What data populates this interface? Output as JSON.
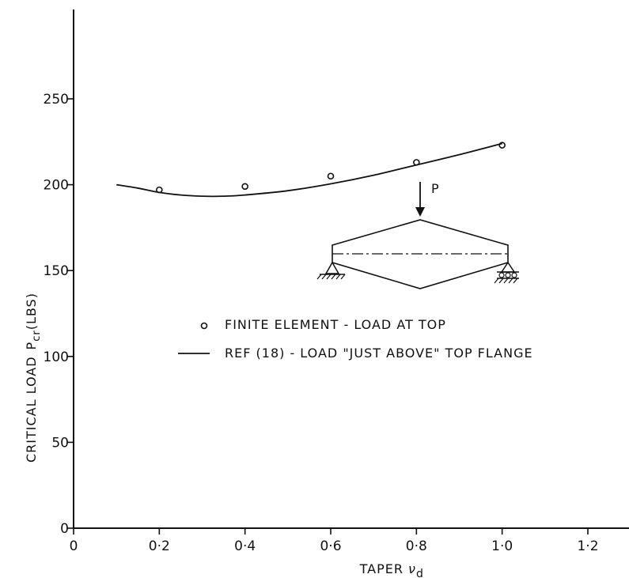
{
  "chart_data": {
    "type": "scatter",
    "xlabel": "TAPER",
    "xlabel_symbol": "ν",
    "xlabel_symbol_sub": "d",
    "ylabel": "CRITICAL LOAD",
    "ylabel_symbol": "P",
    "ylabel_symbol_sub": "cr",
    "ylabel_unit": "(LBS)",
    "xlim": [
      0,
      1.3
    ],
    "ylim": [
      0,
      300
    ],
    "x_ticks": [
      {
        "value": 0,
        "label": "0"
      },
      {
        "value": 0.2,
        "label": "0·2"
      },
      {
        "value": 0.4,
        "label": "0·4"
      },
      {
        "value": 0.6,
        "label": "0·6"
      },
      {
        "value": 0.8,
        "label": "0·8"
      },
      {
        "value": 1.0,
        "label": "1·0"
      },
      {
        "value": 1.2,
        "label": "1·2"
      }
    ],
    "y_ticks": [
      {
        "value": 0,
        "label": "0"
      },
      {
        "value": 50,
        "label": "50"
      },
      {
        "value": 100,
        "label": "100"
      },
      {
        "value": 150,
        "label": "150"
      },
      {
        "value": 200,
        "label": "200"
      },
      {
        "value": 250,
        "label": "250"
      }
    ],
    "grid": false,
    "legend_position": "center-right",
    "series": [
      {
        "name": "FINITE ELEMENT - LOAD AT TOP",
        "style": "markers",
        "marker": "open-circle",
        "x": [
          0.2,
          0.4,
          0.6,
          0.8,
          1.0
        ],
        "y": [
          197,
          199,
          205,
          213,
          223
        ]
      },
      {
        "name": "REF (18) - LOAD \"JUST ABOVE\" TOP FLANGE",
        "style": "line",
        "x": [
          0.1,
          0.15,
          0.2,
          0.25,
          0.3,
          0.35,
          0.4,
          0.5,
          0.6,
          0.7,
          0.8,
          0.9,
          1.0
        ],
        "y": [
          200,
          198,
          195.5,
          194,
          193.3,
          193.3,
          194,
          196.5,
          200.5,
          205.5,
          211.5,
          217.5,
          224
        ]
      }
    ],
    "inset": {
      "description_label": "P",
      "load_label": "P"
    }
  }
}
